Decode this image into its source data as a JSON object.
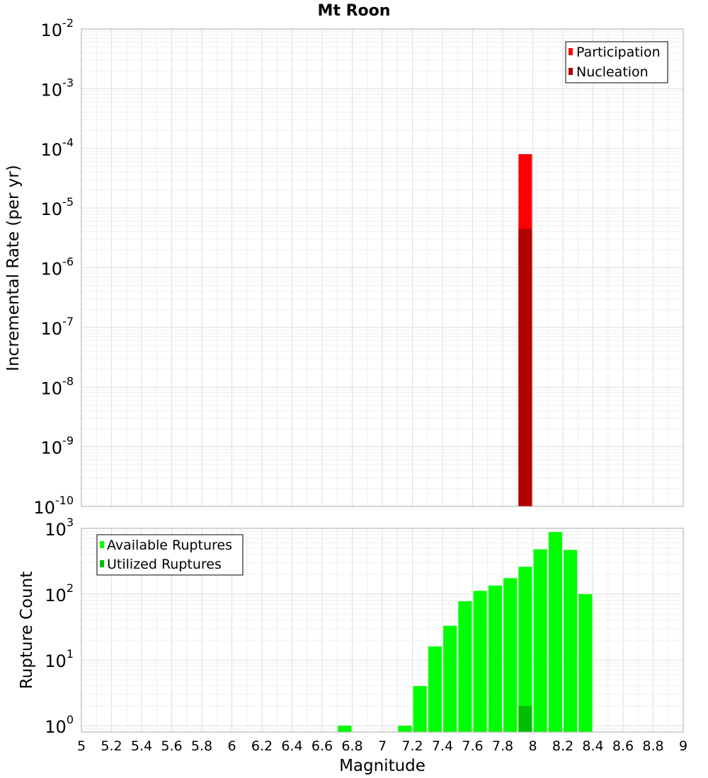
{
  "title": "Mt Roon",
  "colors": {
    "participation": "#ff0000",
    "nucleation": "#b30000",
    "available": "#00ff00",
    "utilized": "#00bf00",
    "grid": "#e6e6e6",
    "frame": "#aaaaaa"
  },
  "chart_data": [
    {
      "type": "bar",
      "panel": "top",
      "ylabel": "Incremental Rate (per yr)",
      "yscale": "log",
      "ylim": [
        1e-10,
        0.01
      ],
      "xlim": [
        5,
        9
      ],
      "grid": true,
      "legend_position": "top-right",
      "y_tick_exponents": [
        "-2",
        "-3",
        "-4",
        "-5",
        "-6",
        "-7",
        "-8",
        "-9",
        "-10"
      ],
      "series": [
        {
          "name": "Participation",
          "x": [
            7.95
          ],
          "values": [
            8e-05
          ],
          "bar_width": 0.09
        },
        {
          "name": "Nucleation",
          "x": [
            7.95
          ],
          "values": [
            4.5e-06
          ],
          "bar_width": 0.09
        }
      ]
    },
    {
      "type": "bar",
      "panel": "bottom",
      "xlabel": "Magnitude",
      "ylabel": "Rupture Count",
      "yscale": "log",
      "ylim": [
        0.8,
        1000
      ],
      "xlim": [
        5,
        9
      ],
      "grid": true,
      "legend_position": "top-left",
      "y_tick_exponents": [
        "3",
        "2",
        "1",
        "0"
      ],
      "x_ticks": [
        "5",
        "5.2",
        "5.4",
        "5.6",
        "5.8",
        "6",
        "6.2",
        "6.4",
        "6.6",
        "6.8",
        "7",
        "7.2",
        "7.4",
        "7.6",
        "7.8",
        "8",
        "8.2",
        "8.4",
        "8.6",
        "8.8",
        "9"
      ],
      "series": [
        {
          "name": "Available Ruptures",
          "x": [
            6.75,
            7.15,
            7.25,
            7.35,
            7.45,
            7.55,
            7.65,
            7.75,
            7.85,
            7.95,
            8.05,
            8.15,
            8.25,
            8.35
          ],
          "values": [
            1,
            1,
            4,
            16,
            33,
            78,
            112,
            135,
            175,
            260,
            480,
            880,
            470,
            100
          ],
          "bar_width": 0.09
        },
        {
          "name": "Utilized Ruptures",
          "x": [
            7.95
          ],
          "values": [
            2
          ],
          "bar_width": 0.09
        }
      ]
    }
  ]
}
